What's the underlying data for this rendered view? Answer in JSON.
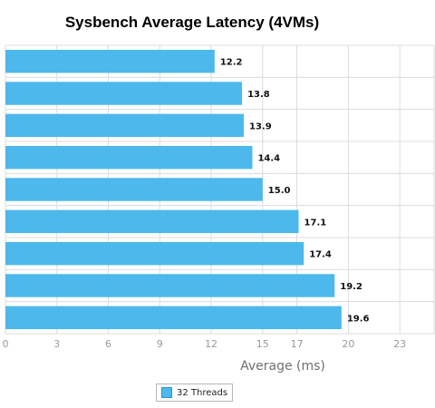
{
  "chart_data": {
    "type": "bar",
    "orientation": "horizontal",
    "title": "Sysbench Average Latency (4VMs)",
    "xlabel": "Average (ms)",
    "ylabel": "",
    "xlim": [
      0,
      25
    ],
    "x_ticks": [
      0,
      3,
      6,
      9,
      12,
      15,
      17,
      20,
      23
    ],
    "grid": true,
    "legend_position": "bottom-center",
    "series": [
      {
        "name": "32 Threads",
        "color": "#4db8ec",
        "values": [
          12.2,
          13.8,
          13.9,
          14.4,
          15.0,
          17.1,
          17.4,
          19.2,
          19.6
        ],
        "labels": [
          "12.2",
          "13.8",
          "13.9",
          "14.4",
          "15.0",
          "17.1",
          "17.4",
          "19.2",
          "19.6"
        ]
      }
    ]
  }
}
